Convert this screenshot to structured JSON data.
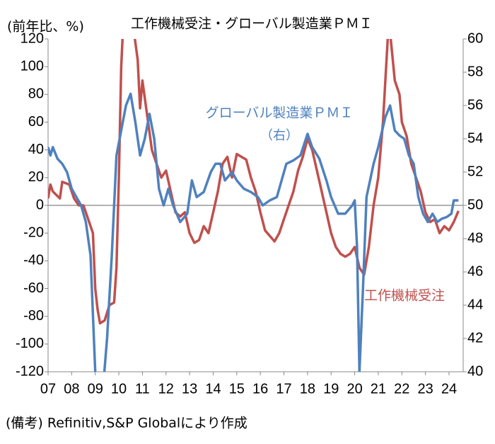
{
  "chart_data": {
    "type": "line",
    "title": "工作機械受注・グローバル製造業ＰＭＩ",
    "y_label": "(前年比、%)",
    "note": "(備考) Refinitiv,S&P Globalにより作成",
    "annotation": "（右）",
    "xlim": [
      2007,
      2024.6
    ],
    "xticks": [
      {
        "value": 2007,
        "label": "07"
      },
      {
        "value": 2008,
        "label": "08"
      },
      {
        "value": 2009,
        "label": "09"
      },
      {
        "value": 2010,
        "label": "10"
      },
      {
        "value": 2011,
        "label": "11"
      },
      {
        "value": 2012,
        "label": "12"
      },
      {
        "value": 2013,
        "label": "13"
      },
      {
        "value": 2014,
        "label": "14"
      },
      {
        "value": 2015,
        "label": "15"
      },
      {
        "value": 2016,
        "label": "16"
      },
      {
        "value": 2017,
        "label": "17"
      },
      {
        "value": 2018,
        "label": "18"
      },
      {
        "value": 2019,
        "label": "19"
      },
      {
        "value": 2020,
        "label": "20"
      },
      {
        "value": 2021,
        "label": "21"
      },
      {
        "value": 2022,
        "label": "22"
      },
      {
        "value": 2023,
        "label": "23"
      },
      {
        "value": 2024,
        "label": "24"
      }
    ],
    "ylim": [
      -120,
      120
    ],
    "yticks": [
      -120,
      -100,
      -80,
      -60,
      -40,
      -20,
      0,
      20,
      40,
      60,
      80,
      100,
      120
    ],
    "y2lim": [
      40,
      60
    ],
    "y2ticks": [
      40,
      42,
      44,
      46,
      48,
      50,
      52,
      54,
      56,
      58,
      60
    ],
    "zero_line": true,
    "series": [
      {
        "name": "工作機械受注",
        "color": "#c0504d",
        "x": [
          2007.0,
          2007.1,
          2007.2,
          2007.5,
          2007.6,
          2007.9,
          2008.1,
          2008.3,
          2008.5,
          2008.7,
          2008.9,
          2009.0,
          2009.1,
          2009.2,
          2009.4,
          2009.6,
          2009.8,
          2009.9,
          2010.0,
          2010.1,
          2010.2,
          2010.4,
          2010.6,
          2010.8,
          2010.9,
          2011.0,
          2011.2,
          2011.4,
          2011.6,
          2011.8,
          2012.0,
          2012.2,
          2012.4,
          2012.6,
          2012.8,
          2013.0,
          2013.2,
          2013.4,
          2013.6,
          2013.8,
          2014.0,
          2014.2,
          2014.4,
          2014.6,
          2014.8,
          2015.0,
          2015.2,
          2015.4,
          2015.6,
          2015.8,
          2016.0,
          2016.2,
          2016.4,
          2016.6,
          2016.8,
          2017.0,
          2017.2,
          2017.4,
          2017.6,
          2017.8,
          2018.0,
          2018.2,
          2018.4,
          2018.6,
          2018.8,
          2019.0,
          2019.2,
          2019.4,
          2019.6,
          2019.8,
          2020.0,
          2020.2,
          2020.4,
          2020.6,
          2020.8,
          2021.0,
          2021.2,
          2021.4,
          2021.5,
          2021.7,
          2021.9,
          2022.0,
          2022.2,
          2022.4,
          2022.6,
          2022.8,
          2023.0,
          2023.2,
          2023.4,
          2023.6,
          2023.8,
          2024.0,
          2024.2,
          2024.4
        ],
        "values": [
          5,
          15,
          10,
          5,
          17,
          15,
          5,
          0,
          0,
          -10,
          -20,
          -60,
          -75,
          -85,
          -83,
          -72,
          -70,
          -45,
          20,
          100,
          135,
          140,
          130,
          105,
          70,
          90,
          65,
          40,
          30,
          20,
          25,
          10,
          -5,
          -8,
          -5,
          -20,
          -27,
          -25,
          -15,
          -20,
          -5,
          10,
          30,
          35,
          20,
          37,
          35,
          33,
          20,
          10,
          -5,
          -18,
          -22,
          -26,
          -20,
          -10,
          0,
          10,
          25,
          35,
          48,
          40,
          25,
          10,
          -5,
          -20,
          -30,
          -35,
          -37,
          -35,
          -30,
          -45,
          -50,
          -30,
          0,
          20,
          60,
          120,
          125,
          90,
          80,
          60,
          50,
          30,
          20,
          10,
          -5,
          -12,
          -10,
          -20,
          -15,
          -18,
          -12,
          -4
        ]
      },
      {
        "name": "グローバル製造業ＰＭＩ",
        "color": "#4f81bd",
        "axis": "y2",
        "x": [
          2007.0,
          2007.1,
          2007.2,
          2007.4,
          2007.6,
          2007.8,
          2008.0,
          2008.2,
          2008.4,
          2008.6,
          2008.8,
          2009.0,
          2009.1,
          2009.3,
          2009.5,
          2009.7,
          2009.9,
          2010.1,
          2010.3,
          2010.5,
          2010.7,
          2010.9,
          2011.1,
          2011.3,
          2011.5,
          2011.7,
          2011.9,
          2012.1,
          2012.3,
          2012.6,
          2012.9,
          2013.1,
          2013.3,
          2013.6,
          2013.9,
          2014.1,
          2014.3,
          2014.5,
          2014.8,
          2015.0,
          2015.3,
          2015.6,
          2015.9,
          2016.1,
          2016.4,
          2016.7,
          2016.9,
          2017.1,
          2017.4,
          2017.7,
          2018.0,
          2018.2,
          2018.5,
          2018.8,
          2019.0,
          2019.3,
          2019.6,
          2019.9,
          2020.0,
          2020.1,
          2020.2,
          2020.35,
          2020.5,
          2020.8,
          2021.0,
          2021.3,
          2021.5,
          2021.7,
          2021.9,
          2022.1,
          2022.3,
          2022.5,
          2022.7,
          2022.9,
          2023.1,
          2023.3,
          2023.5,
          2023.7,
          2023.9,
          2024.1,
          2024.2,
          2024.4
        ],
        "values": [
          53.5,
          53,
          53.5,
          52.8,
          52.5,
          52,
          51,
          50.5,
          50,
          49,
          47,
          40,
          38.5,
          38.5,
          42,
          47,
          53,
          54.5,
          56,
          56.7,
          55,
          53,
          54,
          55.5,
          54,
          51,
          50,
          51,
          50,
          49,
          49.5,
          51.5,
          50.5,
          50.8,
          52,
          52.5,
          52.5,
          51.5,
          52,
          51.5,
          51,
          50.8,
          50.5,
          50,
          50.3,
          50.5,
          51.5,
          52.5,
          52.7,
          53,
          54.3,
          53.5,
          52.8,
          51.5,
          50.5,
          49.5,
          49.5,
          50,
          50.3,
          47.5,
          40,
          45,
          50.5,
          52.5,
          53.5,
          55.3,
          56,
          54.5,
          54.2,
          54,
          53,
          52.5,
          50.5,
          49.5,
          49,
          49.5,
          49,
          49.2,
          49.3,
          49.5,
          50.3,
          50.3
        ]
      }
    ]
  }
}
